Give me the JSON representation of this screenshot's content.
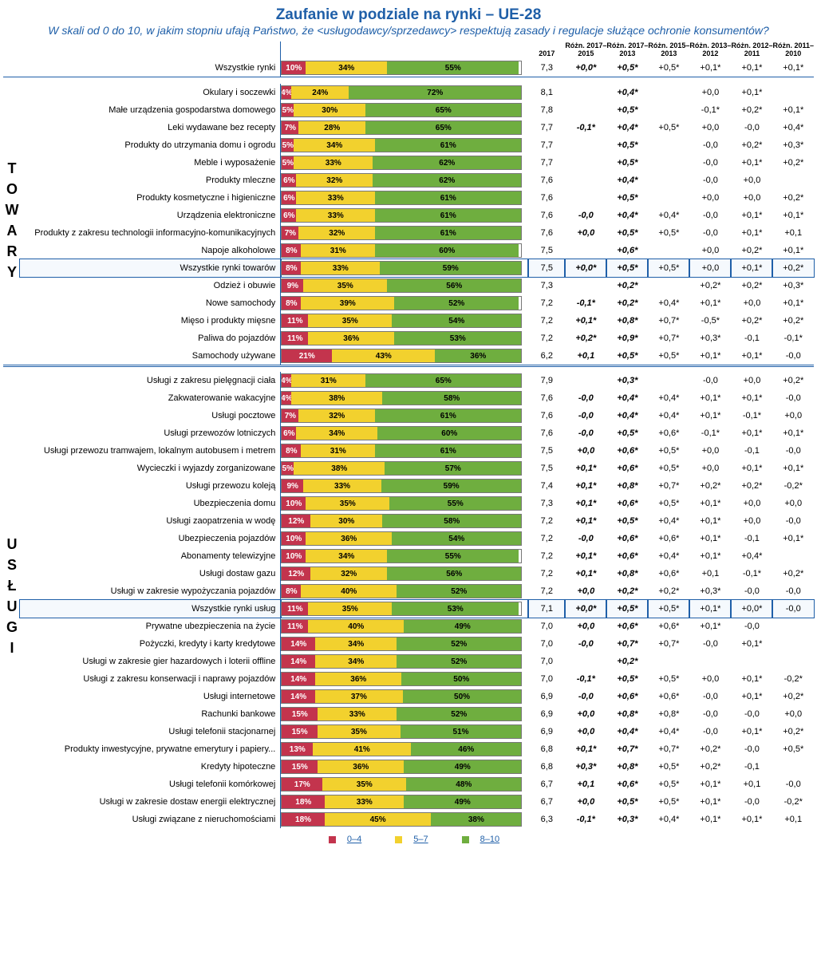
{
  "title": "Zaufanie w podziale na rynki – UE-28",
  "subtitle": "W skali od 0 do 10, w jakim stopniu ufają Państwo, że <usługodawcy/sprzedawcy> respektują zasady i regulacje służące ochronie konsumentów?",
  "colors": {
    "red": "#c3344d",
    "yellow": "#f2d12e",
    "green": "#6fae3f"
  },
  "legend": [
    {
      "c": "#c3344d",
      "t": "0–4"
    },
    {
      "c": "#f2d12e",
      "t": "5–7"
    },
    {
      "c": "#6fae3f",
      "t": "8–10"
    }
  ],
  "header": [
    "2017",
    "Różn. 2017–2015",
    "Różn. 2017–2013",
    "Różn. 2015–2013",
    "Różn. 2013–2012",
    "Różn. 2012–2011",
    "Różn. 2011–2010"
  ],
  "section_labels": {
    "goods": "TOWARY",
    "services": "USŁUGI"
  },
  "top": [
    {
      "l": "Wszystkie rynki",
      "b": [
        10,
        34,
        55
      ],
      "v": [
        "7,3",
        "+0,0*",
        "+0,5*",
        "+0,5*",
        "+0,1*",
        "+0,1*",
        "+0,1*"
      ],
      "bold": [
        1,
        2
      ]
    }
  ],
  "goods": [
    {
      "l": "Okulary i soczewki",
      "b": [
        4,
        24,
        72
      ],
      "v": [
        "8,1",
        "",
        "+0,4*",
        "",
        "+0,0",
        "+0,1*",
        ""
      ],
      "bold": [
        2
      ]
    },
    {
      "l": "Małe urządzenia gospodarstwa domowego",
      "b": [
        5,
        30,
        65
      ],
      "v": [
        "7,8",
        "",
        "+0,5*",
        "",
        "-0,1*",
        "+0,2*",
        "+0,1*"
      ],
      "bold": [
        2
      ]
    },
    {
      "l": "Leki wydawane bez recepty",
      "b": [
        7,
        28,
        65
      ],
      "v": [
        "7,7",
        "-0,1*",
        "+0,4*",
        "+0,5*",
        "+0,0",
        "-0,0",
        "+0,4*"
      ],
      "bold": [
        1,
        2
      ]
    },
    {
      "l": "Produkty do utrzymania domu i ogrodu",
      "b": [
        5,
        34,
        61
      ],
      "v": [
        "7,7",
        "",
        "+0,5*",
        "",
        "-0,0",
        "+0,2*",
        "+0,3*"
      ],
      "bold": [
        2
      ]
    },
    {
      "l": "Meble i wyposażenie",
      "b": [
        5,
        33,
        62
      ],
      "v": [
        "7,7",
        "",
        "+0,5*",
        "",
        "-0,0",
        "+0,1*",
        "+0,2*"
      ],
      "bold": [
        2
      ]
    },
    {
      "l": "Produkty mleczne",
      "b": [
        6,
        32,
        62
      ],
      "v": [
        "7,6",
        "",
        "+0,4*",
        "",
        "-0,0",
        "+0,0",
        ""
      ],
      "bold": [
        2
      ]
    },
    {
      "l": "Produkty kosmetyczne i higieniczne",
      "b": [
        6,
        33,
        61
      ],
      "v": [
        "7,6",
        "",
        "+0,5*",
        "",
        "+0,0",
        "+0,0",
        "+0,2*"
      ],
      "bold": [
        2
      ]
    },
    {
      "l": "Urządzenia elektroniczne",
      "b": [
        6,
        33,
        61
      ],
      "v": [
        "7,6",
        "-0,0",
        "+0,4*",
        "+0,4*",
        "-0,0",
        "+0,1*",
        "+0,1*"
      ],
      "bold": [
        1,
        2
      ]
    },
    {
      "l": "Produkty z zakresu technologii informacyjno-komunikacyjnych",
      "b": [
        7,
        32,
        61
      ],
      "v": [
        "7,6",
        "+0,0",
        "+0,5*",
        "+0,5*",
        "-0,0",
        "+0,1*",
        "+0,1"
      ],
      "bold": [
        1,
        2
      ]
    },
    {
      "l": "Napoje alkoholowe",
      "b": [
        8,
        31,
        60
      ],
      "v": [
        "7,5",
        "",
        "+0,6*",
        "",
        "+0,0",
        "+0,2*",
        "+0,1*"
      ],
      "bold": [
        2
      ]
    },
    {
      "l": "Wszystkie rynki towarów",
      "b": [
        8,
        33,
        59
      ],
      "v": [
        "7,5",
        "+0,0*",
        "+0,5*",
        "+0,5*",
        "+0,0",
        "+0,1*",
        "+0,2*"
      ],
      "bold": [
        1,
        2
      ],
      "box": true
    },
    {
      "l": "Odzież i obuwie",
      "b": [
        9,
        35,
        56
      ],
      "v": [
        "7,3",
        "",
        "+0,2*",
        "",
        "+0,2*",
        "+0,2*",
        "+0,3*"
      ],
      "bold": [
        2
      ]
    },
    {
      "l": "Nowe samochody",
      "b": [
        8,
        39,
        52
      ],
      "v": [
        "7,2",
        "-0,1*",
        "+0,2*",
        "+0,4*",
        "+0,1*",
        "+0,0",
        "+0,1*"
      ],
      "bold": [
        1,
        2
      ]
    },
    {
      "l": "Mięso i produkty mięsne",
      "b": [
        11,
        35,
        54
      ],
      "v": [
        "7,2",
        "+0,1*",
        "+0,8*",
        "+0,7*",
        "-0,5*",
        "+0,2*",
        "+0,2*"
      ],
      "bold": [
        1,
        2
      ]
    },
    {
      "l": "Paliwa do pojazdów",
      "b": [
        11,
        36,
        53
      ],
      "v": [
        "7,2",
        "+0,2*",
        "+0,9*",
        "+0,7*",
        "+0,3*",
        "-0,1",
        "-0,1*"
      ],
      "bold": [
        1,
        2
      ]
    },
    {
      "l": "Samochody używane",
      "b": [
        21,
        43,
        36
      ],
      "v": [
        "6,2",
        "+0,1",
        "+0,5*",
        "+0,5*",
        "+0,1*",
        "+0,1*",
        "-0,0"
      ],
      "bold": [
        1,
        2
      ]
    }
  ],
  "services": [
    {
      "l": "Usługi z zakresu pielęgnacji ciała",
      "b": [
        4,
        31,
        65
      ],
      "v": [
        "7,9",
        "",
        "+0,3*",
        "",
        "-0,0",
        "+0,0",
        "+0,2*"
      ],
      "bold": [
        2
      ]
    },
    {
      "l": "Zakwaterowanie wakacyjne",
      "b": [
        4,
        38,
        58
      ],
      "v": [
        "7,6",
        "-0,0",
        "+0,4*",
        "+0,4*",
        "+0,1*",
        "+0,1*",
        "-0,0"
      ],
      "bold": [
        1,
        2
      ]
    },
    {
      "l": "Usługi pocztowe",
      "b": [
        7,
        32,
        61
      ],
      "v": [
        "7,6",
        "-0,0",
        "+0,4*",
        "+0,4*",
        "+0,1*",
        "-0,1*",
        "+0,0"
      ],
      "bold": [
        1,
        2
      ]
    },
    {
      "l": "Usługi przewozów lotniczych",
      "b": [
        6,
        34,
        60
      ],
      "v": [
        "7,6",
        "-0,0",
        "+0,5*",
        "+0,6*",
        "-0,1*",
        "+0,1*",
        "+0,1*"
      ],
      "bold": [
        1,
        2
      ]
    },
    {
      "l": "Usługi przewozu tramwajem, lokalnym autobusem i metrem",
      "b": [
        8,
        31,
        61
      ],
      "v": [
        "7,5",
        "+0,0",
        "+0,6*",
        "+0,5*",
        "+0,0",
        "-0,1",
        "-0,0"
      ],
      "bold": [
        1,
        2
      ]
    },
    {
      "l": "Wycieczki i wyjazdy zorganizowane",
      "b": [
        5,
        38,
        57
      ],
      "v": [
        "7,5",
        "+0,1*",
        "+0,6*",
        "+0,5*",
        "+0,0",
        "+0,1*",
        "+0,1*"
      ],
      "bold": [
        1,
        2
      ]
    },
    {
      "l": "Usługi przewozu koleją",
      "b": [
        9,
        33,
        59
      ],
      "v": [
        "7,4",
        "+0,1*",
        "+0,8*",
        "+0,7*",
        "+0,2*",
        "+0,2*",
        "-0,2*"
      ],
      "bold": [
        1,
        2
      ]
    },
    {
      "l": "Ubezpieczenia domu",
      "b": [
        10,
        35,
        55
      ],
      "v": [
        "7,3",
        "+0,1*",
        "+0,6*",
        "+0,5*",
        "+0,1*",
        "+0,0",
        "+0,0"
      ],
      "bold": [
        1,
        2
      ]
    },
    {
      "l": "Usługi zaopatrzenia w wodę",
      "b": [
        12,
        30,
        58
      ],
      "v": [
        "7,2",
        "+0,1*",
        "+0,5*",
        "+0,4*",
        "+0,1*",
        "+0,0",
        "-0,0"
      ],
      "bold": [
        1,
        2
      ]
    },
    {
      "l": "Ubezpieczenia pojazdów",
      "b": [
        10,
        36,
        54
      ],
      "v": [
        "7,2",
        "-0,0",
        "+0,6*",
        "+0,6*",
        "+0,1*",
        "-0,1",
        "+0,1*"
      ],
      "bold": [
        1,
        2
      ]
    },
    {
      "l": "Abonamenty telewizyjne",
      "b": [
        10,
        34,
        55
      ],
      "v": [
        "7,2",
        "+0,1*",
        "+0,6*",
        "+0,4*",
        "+0,1*",
        "+0,4*",
        ""
      ],
      "bold": [
        1,
        2
      ]
    },
    {
      "l": "Usługi dostaw gazu",
      "b": [
        12,
        32,
        56
      ],
      "v": [
        "7,2",
        "+0,1*",
        "+0,8*",
        "+0,6*",
        "+0,1",
        "-0,1*",
        "+0,2*"
      ],
      "bold": [
        1,
        2
      ]
    },
    {
      "l": "Usługi w zakresie wypożyczania pojazdów",
      "b": [
        8,
        40,
        52
      ],
      "v": [
        "7,2",
        "+0,0",
        "+0,2*",
        "+0,2*",
        "+0,3*",
        "-0,0",
        "-0,0"
      ],
      "bold": [
        1,
        2
      ]
    },
    {
      "l": "Wszystkie rynki usług",
      "b": [
        11,
        35,
        53
      ],
      "v": [
        "7,1",
        "+0,0*",
        "+0,5*",
        "+0,5*",
        "+0,1*",
        "+0,0*",
        "-0,0"
      ],
      "bold": [
        1,
        2
      ],
      "box": true
    },
    {
      "l": "Prywatne ubezpieczenia na życie",
      "b": [
        11,
        40,
        49
      ],
      "v": [
        "7,0",
        "+0,0",
        "+0,6*",
        "+0,6*",
        "+0,1*",
        "-0,0",
        ""
      ],
      "bold": [
        1,
        2
      ]
    },
    {
      "l": "Pożyczki, kredyty i karty kredytowe",
      "b": [
        14,
        34,
        52
      ],
      "v": [
        "7,0",
        "-0,0",
        "+0,7*",
        "+0,7*",
        "-0,0",
        "+0,1*",
        ""
      ],
      "bold": [
        1,
        2
      ]
    },
    {
      "l": "Usługi w zakresie gier hazardowych i loterii offline",
      "b": [
        14,
        34,
        52
      ],
      "v": [
        "7,0",
        "",
        "+0,2*",
        "",
        "",
        "",
        ""
      ],
      "bold": [
        2
      ]
    },
    {
      "l": "Usługi z zakresu konserwacji i naprawy pojazdów",
      "b": [
        14,
        36,
        50
      ],
      "v": [
        "7,0",
        "-0,1*",
        "+0,5*",
        "+0,5*",
        "+0,0",
        "+0,1*",
        "-0,2*"
      ],
      "bold": [
        1,
        2
      ]
    },
    {
      "l": "Usługi internetowe",
      "b": [
        14,
        37,
        50
      ],
      "v": [
        "6,9",
        "-0,0",
        "+0,6*",
        "+0,6*",
        "-0,0",
        "+0,1*",
        "+0,2*"
      ],
      "bold": [
        1,
        2
      ]
    },
    {
      "l": "Rachunki bankowe",
      "b": [
        15,
        33,
        52
      ],
      "v": [
        "6,9",
        "+0,0",
        "+0,8*",
        "+0,8*",
        "-0,0",
        "-0,0",
        "+0,0"
      ],
      "bold": [
        1,
        2
      ]
    },
    {
      "l": "Usługi telefonii stacjonarnej",
      "b": [
        15,
        35,
        51
      ],
      "v": [
        "6,9",
        "+0,0",
        "+0,4*",
        "+0,4*",
        "-0,0",
        "+0,1*",
        "+0,2*"
      ],
      "bold": [
        1,
        2
      ]
    },
    {
      "l": "Produkty inwestycyjne, prywatne emerytury i papiery...",
      "b": [
        13,
        41,
        46
      ],
      "v": [
        "6,8",
        "+0,1*",
        "+0,7*",
        "+0,7*",
        "+0,2*",
        "-0,0",
        "+0,5*"
      ],
      "bold": [
        1,
        2
      ]
    },
    {
      "l": "Kredyty hipoteczne",
      "b": [
        15,
        36,
        49
      ],
      "v": [
        "6,8",
        "+0,3*",
        "+0,8*",
        "+0,5*",
        "+0,2*",
        "-0,1",
        ""
      ],
      "bold": [
        1,
        2
      ]
    },
    {
      "l": "Usługi telefonii komórkowej",
      "b": [
        17,
        35,
        48
      ],
      "v": [
        "6,7",
        "+0,1",
        "+0,6*",
        "+0,5*",
        "+0,1*",
        "+0,1",
        "-0,0"
      ],
      "bold": [
        1,
        2
      ]
    },
    {
      "l": "Usługi w zakresie dostaw energii elektrycznej",
      "b": [
        18,
        33,
        49
      ],
      "v": [
        "6,7",
        "+0,0",
        "+0,5*",
        "+0,5*",
        "+0,1*",
        "-0,0",
        "-0,2*"
      ],
      "bold": [
        1,
        2
      ]
    },
    {
      "l": "Usługi związane z nieruchomościami",
      "b": [
        18,
        45,
        38
      ],
      "v": [
        "6,3",
        "-0,1*",
        "+0,3*",
        "+0,4*",
        "+0,1*",
        "+0,1*",
        "+0,1"
      ],
      "bold": [
        1,
        2
      ]
    }
  ]
}
